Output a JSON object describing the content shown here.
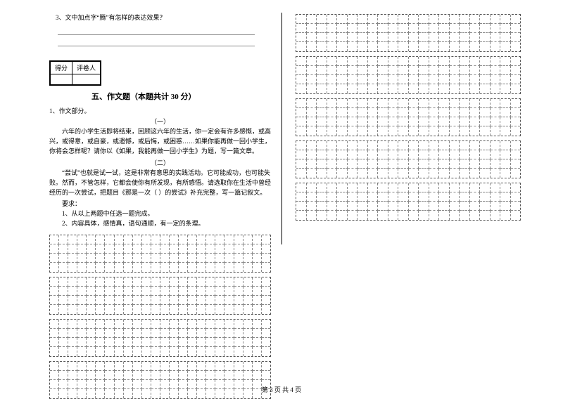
{
  "left": {
    "q3": "3、文中加点字“腾”有怎样的表达效果？",
    "scorebox": {
      "c1": "得分",
      "c2": "评卷人"
    },
    "section_title": "五、作文题（本题共计 30 分）",
    "p_number": "1、作文部分。",
    "one": "（一）",
    "prompt1": "六年的小学生活即将结束，回顾这六年的生活，你一定会有许多感慨，或高兴，或得意，或自豪，或遗憾，或后悔，或困惑……如果你能再做一回小学生，你将会怎样呢？请你以《如果，我能再做一回小学生》为题，写一篇文章。",
    "two": "（二）",
    "prompt2": "“尝试”也就是试一试，这是非常有意思的实践活动。它可能成功，也可能失败。然而，不管怎样，它都会使你有所发现，有所感悟。请选取你在生活中曾经经历的一次尝试，把题目《那是一次（ ）的尝试》补充完整，写一篇记叙文。",
    "req_label": "要求：",
    "req1": "1、从以上两题中任选一题完成。",
    "req2": "2、内容具体，感情真，语句通顺，有一定的条理。",
    "left_grids": {
      "rows_per_block": 4,
      "cols": 24,
      "blocks": 4
    }
  },
  "right": {
    "grids": {
      "blocks": 5,
      "rows_per_block": 4,
      "cols": 22
    }
  },
  "footer": "第 3 页 共 4 页",
  "style": {
    "grid_border": "#888",
    "font_base": 9
  }
}
